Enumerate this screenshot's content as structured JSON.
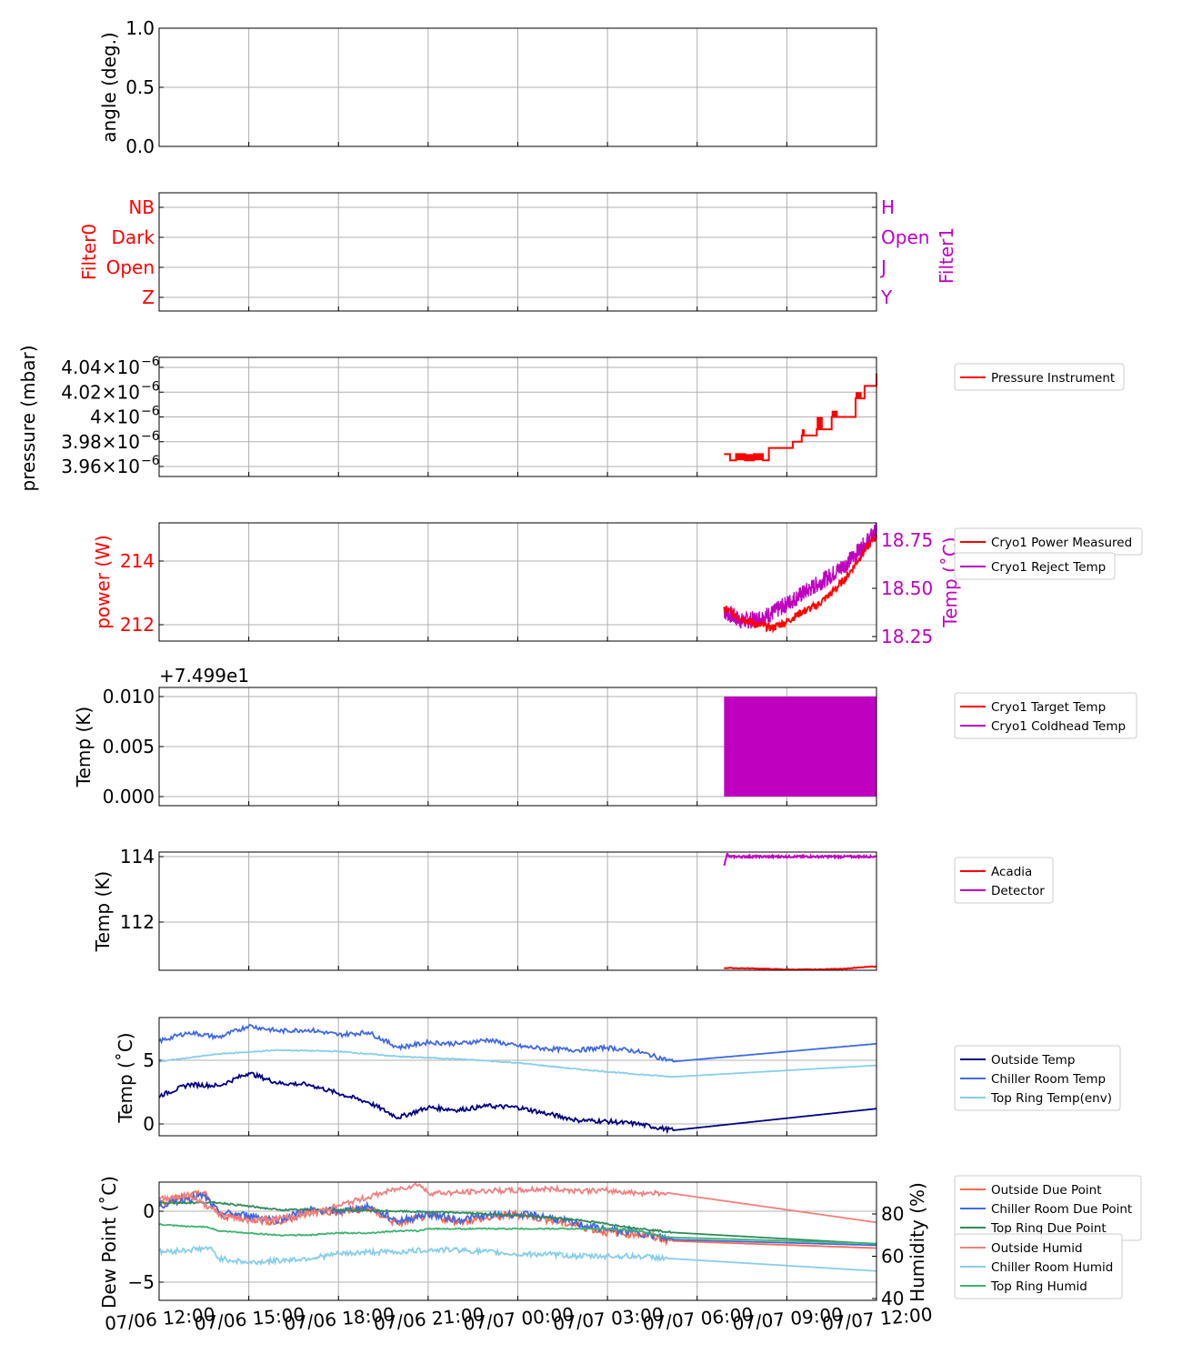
{
  "colors": {
    "red": "#ff0000",
    "magenta": "#bf00bf",
    "navy": "#000080",
    "royalblue": "#4169e1",
    "skyblue": "#87ceeb",
    "salmon": "#fa6a50",
    "seagreen": "#2e8b57",
    "mediumseagreen": "#3cb371",
    "lightcoral": "#f08080",
    "grid": "#b0b0b0"
  },
  "x_ticks": [
    "07/06 12:00",
    "07/06 15:00",
    "07/06 18:00",
    "07/06 21:00",
    "07/07 00:00",
    "07/07 03:00",
    "07/07 06:00",
    "07/07 09:00",
    "07/07 12:00"
  ],
  "chart_data": [
    {
      "type": "line",
      "ylabel": "angle (deg.)",
      "ylim": [
        0.0,
        1.0
      ],
      "yticks": [
        "0.0",
        "0.5",
        "1.0"
      ],
      "series": []
    },
    {
      "type": "line",
      "ylabel": "Filter0",
      "ylabel_right": "Filter1",
      "yticks_left": [
        "Z",
        "Open",
        "Dark",
        "NB"
      ],
      "yticks_right": [
        "Y",
        "J",
        "Open",
        "H"
      ],
      "series": []
    },
    {
      "type": "line",
      "ylabel": "pressure (mbar)",
      "yticks": [
        "3.96",
        "3.98",
        "4",
        "4.02",
        "4.04"
      ],
      "ytick_mult": "×10",
      "ytick_exp": "−6",
      "series": [
        {
          "name": "Pressure Instrument",
          "x_hours": [
            18.9,
            19.1,
            19.3,
            19.6,
            19.9,
            20.2,
            20.4,
            21.2,
            21.5,
            22.0,
            22.5,
            23.0,
            23.3,
            23.6,
            24.0
          ],
          "values": [
            3.97,
            3.965,
            3.97,
            3.965,
            3.97,
            3.965,
            3.975,
            3.98,
            3.985,
            3.99,
            4.0,
            4.0,
            4.015,
            4.025,
            4.035
          ]
        }
      ]
    },
    {
      "type": "line",
      "ylabel": "power (W)",
      "ylabel_right": "Temp (˚C)",
      "yticks_left": [
        "212",
        "214"
      ],
      "yticks_right": [
        "18.25",
        "18.50",
        "18.75"
      ],
      "series": [
        {
          "name": "Cryo1 Power Measured",
          "axis": "left",
          "x_hours": [
            18.9,
            19.5,
            20.0,
            20.5,
            21.0,
            21.5,
            22.0,
            22.5,
            23.0,
            23.5,
            24.0
          ],
          "values": [
            212.5,
            212.2,
            212.0,
            211.9,
            212.1,
            212.4,
            212.6,
            213.0,
            213.5,
            214.2,
            214.8
          ]
        },
        {
          "name": "Cryo1 Reject Temp",
          "axis": "right",
          "x_hours": [
            18.9,
            19.5,
            20.0,
            20.5,
            21.0,
            21.5,
            22.0,
            22.5,
            23.0,
            23.5,
            24.0
          ],
          "values": [
            18.38,
            18.33,
            18.34,
            18.37,
            18.42,
            18.47,
            18.52,
            18.57,
            18.63,
            18.71,
            18.8
          ]
        }
      ]
    },
    {
      "type": "area",
      "ylabel": "Temp (K)",
      "offset_text": "+7.499e1",
      "yticks": [
        "0.000",
        "0.005",
        "0.010"
      ],
      "series": [
        {
          "name": "Cryo1 Target Temp",
          "values": []
        },
        {
          "name": "Cryo1 Coldhead Temp",
          "x_range": [
            18.9,
            24.0
          ],
          "values": [
            0.0,
            0.01
          ]
        }
      ]
    },
    {
      "type": "line",
      "ylabel": "Temp (K)",
      "yticks": [
        "112",
        "114"
      ],
      "series": [
        {
          "name": "Acadia",
          "x_hours": [
            18.9,
            20.0,
            21.0,
            22.0,
            23.0,
            24.0
          ],
          "values": [
            110.6,
            110.58,
            110.55,
            110.55,
            110.58,
            110.65
          ]
        },
        {
          "name": "Detector",
          "x_hours": [
            18.9,
            19.0,
            19.05,
            19.2,
            24.0
          ],
          "values": [
            113.7,
            114.1,
            114.0,
            114.0,
            114.0
          ]
        }
      ]
    },
    {
      "type": "line",
      "ylabel": "Temp (˚C)",
      "yticks": [
        "0",
        "5"
      ],
      "series": [
        {
          "name": "Outside Temp",
          "x_hours": [
            0,
            1,
            2,
            3,
            4,
            5,
            6,
            7,
            8,
            9,
            10,
            11,
            12,
            13,
            14,
            15,
            16,
            17.2,
            24
          ],
          "values": [
            2.2,
            3.1,
            3.0,
            4.0,
            3.2,
            3.1,
            2.4,
            1.7,
            0.5,
            1.3,
            1.1,
            1.4,
            1.3,
            0.8,
            0.3,
            0.2,
            0.0,
            -0.5,
            1.2
          ]
        },
        {
          "name": "Chiller Room Temp",
          "x_hours": [
            0,
            1,
            2,
            3,
            4,
            5,
            6,
            7,
            8,
            9,
            10,
            11,
            12,
            13,
            14,
            15,
            16,
            17.2,
            24
          ],
          "values": [
            6.5,
            7.2,
            6.8,
            7.7,
            7.3,
            7.4,
            7.0,
            7.2,
            6.0,
            6.4,
            6.3,
            6.6,
            6.1,
            5.9,
            5.8,
            6.0,
            5.7,
            4.9,
            6.3
          ]
        },
        {
          "name": "Top Ring Temp(env)",
          "x_hours": [
            0,
            2,
            4,
            6,
            8,
            10,
            12,
            14,
            16,
            17.2,
            24
          ],
          "values": [
            4.9,
            5.5,
            5.8,
            5.7,
            5.3,
            5.1,
            4.8,
            4.3,
            3.9,
            3.7,
            4.6
          ]
        }
      ]
    },
    {
      "type": "line",
      "ylabel": "Dew Point (˚C)",
      "ylabel_right": "Humidity (%)",
      "yticks_left": [
        "−5",
        "0"
      ],
      "yticks_right": [
        "40",
        "60",
        "80"
      ],
      "series": [
        {
          "name": "Outside Due Point",
          "axis": "left",
          "x_hours": [
            0,
            1,
            1.5,
            2,
            3,
            4,
            5,
            6,
            7,
            8,
            9,
            10,
            11,
            12,
            13,
            14,
            15,
            16,
            17.2,
            24
          ],
          "values": [
            0.6,
            1.1,
            1.3,
            -0.3,
            -0.5,
            -0.8,
            0.0,
            -0.1,
            0.2,
            -0.9,
            -0.3,
            -0.7,
            -0.5,
            -0.2,
            -0.6,
            -1.0,
            -1.5,
            -1.6,
            -2.1,
            -2.6
          ]
        },
        {
          "name": "Chiller Room Due Point",
          "axis": "left",
          "x_hours": [
            0,
            1,
            1.5,
            2,
            3,
            4,
            5,
            6,
            7,
            8,
            9,
            10,
            11,
            12,
            13,
            14,
            15,
            16,
            17.2,
            24
          ],
          "values": [
            0.4,
            0.9,
            1.1,
            -0.1,
            -0.3,
            -0.6,
            0.1,
            0.0,
            0.3,
            -0.7,
            -0.2,
            -0.6,
            -0.3,
            -0.2,
            -0.4,
            -0.9,
            -1.3,
            -1.5,
            -2.0,
            -2.4
          ]
        },
        {
          "name": "Top Ring Due Point",
          "axis": "left",
          "x_hours": [
            0,
            2,
            4,
            6,
            8,
            10,
            12,
            14,
            16,
            17.2,
            24
          ],
          "values": [
            0.6,
            0.6,
            0.1,
            0.1,
            0.0,
            -0.1,
            -0.3,
            -0.6,
            -1.2,
            -1.5,
            -2.3
          ]
        },
        {
          "name": "Outside Humid",
          "axis": "right",
          "x_hours": [
            0,
            1,
            2,
            3,
            4,
            5,
            6,
            7,
            8,
            8.7,
            9,
            10,
            11,
            12,
            13,
            14,
            15,
            16,
            17,
            24
          ],
          "values": [
            87,
            89,
            80,
            77,
            78,
            80,
            84,
            88,
            92,
            94,
            90,
            90,
            91,
            91,
            92,
            91,
            91,
            90,
            90,
            76
          ]
        },
        {
          "name": "Chiller Room Humid",
          "axis": "right",
          "x_hours": [
            0,
            1,
            1.7,
            2,
            3,
            4,
            5,
            6,
            7,
            8,
            9,
            10,
            11,
            12,
            13,
            14,
            15,
            16,
            17,
            24
          ],
          "values": [
            62,
            63,
            64,
            59,
            57,
            58,
            59,
            61,
            62,
            62,
            63,
            63,
            62,
            61,
            61,
            60,
            60,
            60,
            59,
            53
          ]
        },
        {
          "name": "Top Ring Humid",
          "axis": "right",
          "x_hours": [
            0,
            1,
            1.6,
            2,
            3,
            4,
            5,
            6,
            7,
            8,
            8.7,
            9,
            10,
            11,
            12,
            13,
            14,
            15,
            16,
            17,
            24
          ],
          "values": [
            75,
            74,
            74,
            72,
            71,
            70,
            70,
            71,
            71,
            72,
            72,
            73,
            73,
            73,
            73,
            73,
            73,
            73,
            72,
            69,
            66
          ]
        }
      ]
    }
  ]
}
